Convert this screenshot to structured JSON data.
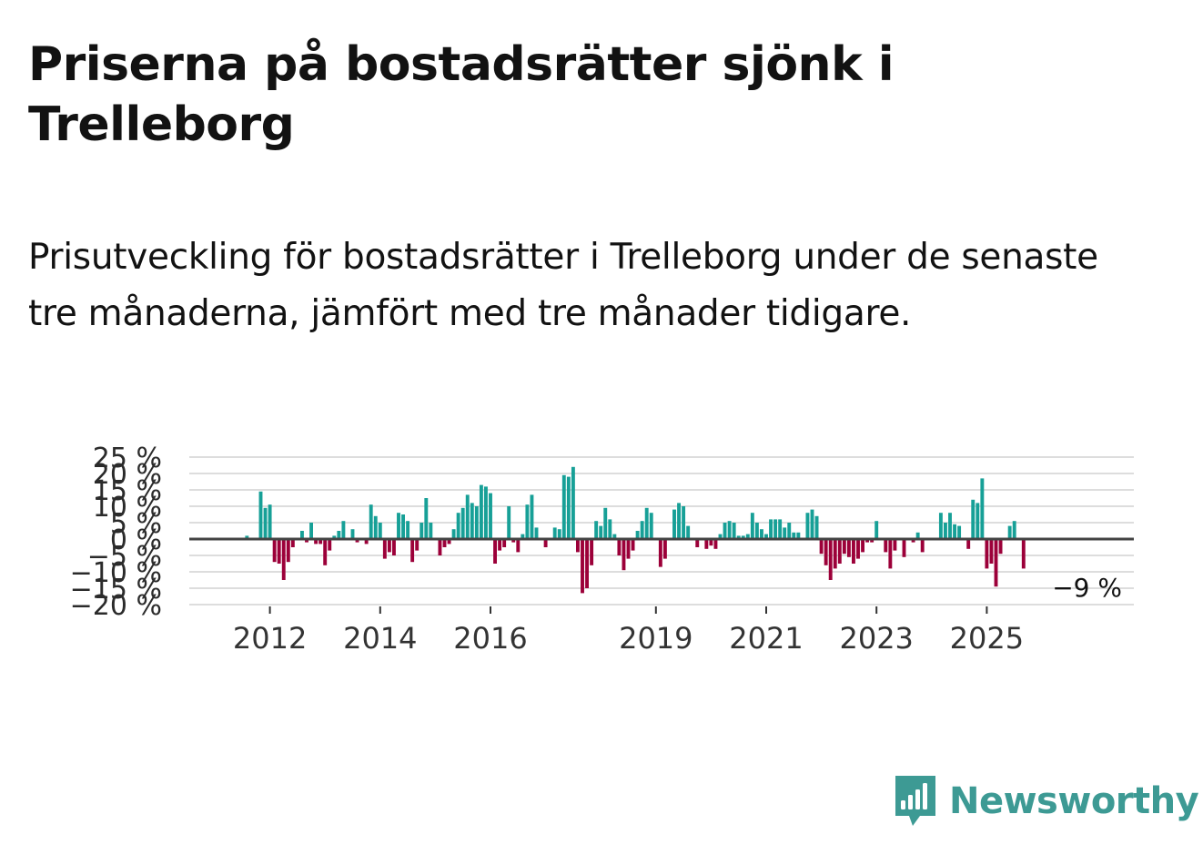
{
  "header": {
    "title": "Priserna på bostadsrätter sjönk i Trelleborg",
    "subtitle": "Prisutveckling för bostadsrätter i Trelleborg under de senaste tre månaderna, jämfört med tre månader tidigare."
  },
  "brand": {
    "name": "Newsworthy"
  },
  "colors": {
    "positive": "#17a097",
    "negative": "#9c0039",
    "grid": "#dddddd",
    "baseline": "#444444",
    "brand": "#3d9a94"
  },
  "chart_data": {
    "type": "bar",
    "title": "Priserna på bostadsrätter sjönk i Trelleborg",
    "xlabel": "",
    "ylabel": "",
    "ylim": [
      -20,
      25
    ],
    "y_ticks": [
      {
        "value": 25,
        "label": "25 %"
      },
      {
        "value": 20,
        "label": "20 %"
      },
      {
        "value": 15,
        "label": "15 %"
      },
      {
        "value": 10,
        "label": "10 %"
      },
      {
        "value": 5,
        "label": "5 %"
      },
      {
        "value": 0,
        "label": "0 %"
      },
      {
        "value": -5,
        "label": "−5 %"
      },
      {
        "value": -10,
        "label": "−10 %"
      },
      {
        "value": -15,
        "label": "−15 %"
      },
      {
        "value": -20,
        "label": "−20 %"
      }
    ],
    "x_ticks": [
      {
        "year": 2012,
        "label": "2012"
      },
      {
        "year": 2014,
        "label": "2014"
      },
      {
        "year": 2016,
        "label": "2016"
      },
      {
        "year": 2019,
        "label": "2019"
      },
      {
        "year": 2021,
        "label": "2021"
      },
      {
        "year": 2023,
        "label": "2023"
      },
      {
        "year": 2025,
        "label": "2025"
      }
    ],
    "start": {
      "year": 2011,
      "month": 5
    },
    "values": [
      0,
      0,
      0,
      1,
      0,
      0,
      14.5,
      9.5,
      10.5,
      -7,
      -7.5,
      -12.5,
      -7,
      -2.5,
      0,
      2.5,
      -1,
      5,
      -1.5,
      -1.5,
      -8,
      -3.5,
      1,
      2.5,
      5.5,
      0,
      3,
      -1,
      0,
      -1.5,
      10.5,
      7,
      5,
      -6,
      -4,
      -5,
      8,
      7.5,
      5.5,
      -7,
      -3.5,
      5,
      12.5,
      5,
      0,
      -5,
      -2.5,
      -1.5,
      3,
      8,
      9.5,
      13.5,
      11,
      10,
      16.5,
      16,
      14,
      -7.5,
      -3.5,
      -2.5,
      10,
      -1,
      -4,
      1.5,
      10.5,
      13.5,
      3.5,
      0,
      -2.5,
      0,
      3.5,
      3,
      19.5,
      19,
      22,
      -4,
      -16.5,
      -15,
      -8,
      5.5,
      4,
      9.5,
      6,
      1.5,
      -5,
      -9.5,
      -6,
      -3.5,
      2.5,
      5.5,
      9.5,
      8,
      0,
      -8.5,
      -6,
      0,
      9,
      11,
      10,
      4,
      0,
      -2.5,
      0,
      -3,
      -2,
      -3,
      1.5,
      5,
      5.5,
      5,
      1,
      1,
      1.5,
      8,
      5,
      3,
      1.5,
      6,
      6,
      6,
      3.5,
      5,
      2,
      2,
      0,
      8,
      9,
      7,
      -4.5,
      -8,
      -12.5,
      -9,
      -7.5,
      -4.5,
      -5.5,
      -7.5,
      -6,
      -4,
      -1,
      -1,
      5.5,
      0,
      -4,
      -9,
      -3.5,
      0,
      -5.5,
      0,
      -1,
      2,
      -4,
      0,
      0,
      0,
      8,
      5,
      8,
      4.5,
      4,
      0,
      -3,
      12,
      11,
      18.5,
      -9,
      -7.5,
      -14.5,
      -4.5,
      0,
      4,
      5.5,
      0,
      -9
    ],
    "end_label": "−9 %"
  }
}
